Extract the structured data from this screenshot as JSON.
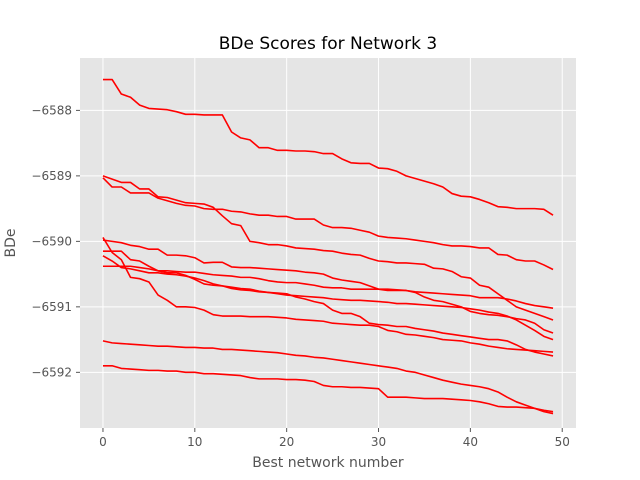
{
  "chart_data": {
    "type": "line",
    "title": "BDe Scores for Network 3",
    "xlabel": "Best network number",
    "ylabel": "BDe",
    "xlim": [
      -2.5,
      51.5
    ],
    "ylim": [
      -6592.85,
      -6587.2
    ],
    "xticks": [
      0,
      10,
      20,
      30,
      40,
      50
    ],
    "yticks": [
      -6592,
      -6591,
      -6590,
      -6589,
      -6588
    ],
    "ytick_labels": [
      "−6592",
      "−6591",
      "−6590",
      "−6589",
      "−6588"
    ],
    "grid": true,
    "color": "#ff0000",
    "series": [
      {
        "x": [
          0,
          1,
          2,
          3,
          4,
          5,
          6,
          7,
          8,
          9,
          10,
          11,
          12,
          13,
          14,
          15,
          16,
          17,
          18,
          19,
          20,
          21,
          22,
          23,
          24,
          25,
          26,
          27,
          28,
          29,
          30,
          31,
          32,
          33,
          34,
          35,
          36,
          37,
          38,
          39,
          40,
          41,
          42,
          43,
          44,
          45,
          46,
          47,
          48,
          49
        ],
        "y": [
          -6587.53,
          -6587.53,
          -6587.75,
          -6587.8,
          -6587.92,
          -6587.97,
          -6587.98,
          -6587.99,
          -6588.02,
          -6588.06,
          -6588.06,
          -6588.07,
          -6588.07,
          -6588.07,
          -6588.33,
          -6588.42,
          -6588.45,
          -6588.57,
          -6588.57,
          -6588.61,
          -6588.61,
          -6588.62,
          -6588.62,
          -6588.63,
          -6588.66,
          -6588.66,
          -6588.74,
          -6588.8,
          -6588.81,
          -6588.81,
          -6588.88,
          -6588.89,
          -6588.93,
          -6589.0,
          -6589.04,
          -6589.08,
          -6589.12,
          -6589.17,
          -6589.27,
          -6589.31,
          -6589.32,
          -6589.36,
          -6589.41,
          -6589.47,
          -6589.48,
          -6589.5,
          -6589.5,
          -6589.5,
          -6589.51,
          -6589.6
        ]
      },
      {
        "x": [
          0,
          1,
          2,
          3,
          4,
          5,
          6,
          7,
          8,
          9,
          10,
          11,
          12,
          13,
          14,
          15,
          16,
          17,
          18,
          19,
          20,
          21,
          22,
          23,
          24,
          25,
          26,
          27,
          28,
          29,
          30,
          31,
          32,
          33,
          34,
          35,
          36,
          37,
          38,
          39,
          40,
          41,
          42,
          43,
          44,
          45,
          46,
          47,
          48,
          49
        ],
        "y": [
          -6589.03,
          -6589.17,
          -6589.17,
          -6589.26,
          -6589.26,
          -6589.26,
          -6589.34,
          -6589.38,
          -6589.42,
          -6589.45,
          -6589.46,
          -6589.5,
          -6589.51,
          -6589.51,
          -6589.54,
          -6589.55,
          -6589.58,
          -6589.6,
          -6589.6,
          -6589.62,
          -6589.62,
          -6589.66,
          -6589.66,
          -6589.66,
          -6589.75,
          -6589.79,
          -6589.79,
          -6589.8,
          -6589.83,
          -6589.86,
          -6589.92,
          -6589.94,
          -6589.95,
          -6589.96,
          -6589.98,
          -6590.0,
          -6590.02,
          -6590.05,
          -6590.07,
          -6590.07,
          -6590.08,
          -6590.1,
          -6590.1,
          -6590.2,
          -6590.21,
          -6590.28,
          -6590.3,
          -6590.3,
          -6590.36,
          -6590.43
        ]
      },
      {
        "x": [
          0,
          1,
          2,
          3,
          4,
          5,
          6,
          7,
          8,
          9,
          10,
          11,
          12,
          13,
          14,
          15,
          16,
          17,
          18,
          19,
          20,
          21,
          22,
          23,
          24,
          25,
          26,
          27,
          28,
          29,
          30,
          31,
          32,
          33,
          34,
          35,
          36,
          37,
          38,
          39,
          40,
          41,
          42,
          43,
          44,
          45,
          46,
          47,
          48,
          49
        ],
        "y": [
          -6589.0,
          -6589.05,
          -6589.1,
          -6589.1,
          -6589.2,
          -6589.2,
          -6589.32,
          -6589.33,
          -6589.37,
          -6589.41,
          -6589.42,
          -6589.43,
          -6589.48,
          -6589.61,
          -6589.73,
          -6589.76,
          -6590.0,
          -6590.02,
          -6590.05,
          -6590.05,
          -6590.07,
          -6590.1,
          -6590.11,
          -6590.12,
          -6590.14,
          -6590.15,
          -6590.18,
          -6590.2,
          -6590.21,
          -6590.26,
          -6590.3,
          -6590.31,
          -6590.33,
          -6590.33,
          -6590.34,
          -6590.35,
          -6590.41,
          -6590.42,
          -6590.46,
          -6590.54,
          -6590.56,
          -6590.67,
          -6590.7,
          -6590.8,
          -6590.9,
          -6591.0,
          -6591.05,
          -6591.1,
          -6591.15,
          -6591.2
        ]
      },
      {
        "x": [
          0,
          1,
          2,
          3,
          4,
          5,
          6,
          7,
          8,
          9,
          10,
          11,
          12,
          13,
          14,
          15,
          16,
          17,
          18,
          19,
          20,
          21,
          22,
          23,
          24,
          25,
          26,
          27,
          28,
          29,
          30,
          31,
          32,
          33,
          34,
          35,
          36,
          37,
          38,
          39,
          40,
          41,
          42,
          43,
          44,
          45,
          46,
          47,
          48,
          49
        ],
        "y": [
          -6589.98,
          -6590.0,
          -6590.02,
          -6590.06,
          -6590.08,
          -6590.12,
          -6590.12,
          -6590.21,
          -6590.21,
          -6590.22,
          -6590.25,
          -6590.33,
          -6590.32,
          -6590.32,
          -6590.39,
          -6590.4,
          -6590.4,
          -6590.41,
          -6590.42,
          -6590.43,
          -6590.44,
          -6590.45,
          -6590.47,
          -6590.48,
          -6590.5,
          -6590.56,
          -6590.59,
          -6590.61,
          -6590.63,
          -6590.68,
          -6590.73,
          -6590.75,
          -6590.75,
          -6590.75,
          -6590.78,
          -6590.85,
          -6590.9,
          -6590.92,
          -6590.96,
          -6591.0,
          -6591.07,
          -6591.1,
          -6591.12,
          -6591.13,
          -6591.15,
          -6591.18,
          -6591.2,
          -6591.25,
          -6591.35,
          -6591.4
        ]
      },
      {
        "x": [
          0,
          1,
          2,
          3,
          4,
          5,
          6,
          7,
          8,
          9,
          10,
          11,
          12,
          13,
          14,
          15,
          16,
          17,
          18,
          19,
          20,
          21,
          22,
          23,
          24,
          25,
          26,
          27,
          28,
          29,
          30,
          31,
          32,
          33,
          34,
          35,
          36,
          37,
          38,
          39,
          40,
          41,
          42,
          43,
          44,
          45,
          46,
          47,
          48,
          49
        ],
        "y": [
          -6589.94,
          -6590.17,
          -6590.28,
          -6590.55,
          -6590.57,
          -6590.62,
          -6590.82,
          -6590.9,
          -6591.0,
          -6591.0,
          -6591.01,
          -6591.05,
          -6591.12,
          -6591.14,
          -6591.14,
          -6591.14,
          -6591.15,
          -6591.15,
          -6591.15,
          -6591.16,
          -6591.17,
          -6591.19,
          -6591.2,
          -6591.21,
          -6591.22,
          -6591.25,
          -6591.26,
          -6591.27,
          -6591.28,
          -6591.28,
          -6591.3,
          -6591.36,
          -6591.38,
          -6591.42,
          -6591.43,
          -6591.45,
          -6591.47,
          -6591.5,
          -6591.51,
          -6591.52,
          -6591.55,
          -6591.57,
          -6591.6,
          -6591.62,
          -6591.64,
          -6591.65,
          -6591.66,
          -6591.67,
          -6591.68,
          -6591.69
        ]
      },
      {
        "x": [
          0,
          1,
          2,
          3,
          4,
          5,
          6,
          7,
          8,
          9,
          10,
          11,
          12,
          13,
          14,
          15,
          16,
          17,
          18,
          19,
          20,
          21,
          22,
          23,
          24,
          25,
          26,
          27,
          28,
          29,
          30,
          31,
          32,
          33,
          34,
          35,
          36,
          37,
          38,
          39,
          40,
          41,
          42,
          43,
          44,
          45,
          46,
          47,
          48,
          49
        ],
        "y": [
          -6590.15,
          -6590.15,
          -6590.15,
          -6590.28,
          -6590.3,
          -6590.38,
          -6590.45,
          -6590.48,
          -6590.48,
          -6590.52,
          -6590.58,
          -6590.65,
          -6590.67,
          -6590.68,
          -6590.72,
          -6590.74,
          -6590.75,
          -6590.77,
          -6590.78,
          -6590.79,
          -6590.8,
          -6590.85,
          -6590.88,
          -6590.92,
          -6590.95,
          -6591.05,
          -6591.1,
          -6591.1,
          -6591.15,
          -6591.25,
          -6591.27,
          -6591.28,
          -6591.3,
          -6591.3,
          -6591.33,
          -6591.35,
          -6591.37,
          -6591.4,
          -6591.42,
          -6591.44,
          -6591.46,
          -6591.48,
          -6591.5,
          -6591.5,
          -6591.52,
          -6591.58,
          -6591.65,
          -6591.69,
          -6591.72,
          -6591.75
        ]
      },
      {
        "x": [
          0,
          1,
          2,
          3,
          4,
          5,
          6,
          7,
          8,
          9,
          10,
          11,
          12,
          13,
          14,
          15,
          16,
          17,
          18,
          19,
          20,
          21,
          22,
          23,
          24,
          25,
          26,
          27,
          28,
          29,
          30,
          31,
          32,
          33,
          34,
          35,
          36,
          37,
          38,
          39,
          40,
          41,
          42,
          43,
          44,
          45,
          46,
          47,
          48,
          49
        ],
        "y": [
          -6590.38,
          -6590.38,
          -6590.38,
          -6590.38,
          -6590.4,
          -6590.42,
          -6590.45,
          -6590.45,
          -6590.46,
          -6590.47,
          -6590.47,
          -6590.49,
          -6590.51,
          -6590.52,
          -6590.53,
          -6590.55,
          -6590.55,
          -6590.57,
          -6590.6,
          -6590.62,
          -6590.63,
          -6590.63,
          -6590.65,
          -6590.67,
          -6590.7,
          -6590.71,
          -6590.71,
          -6590.73,
          -6590.73,
          -6590.73,
          -6590.73,
          -6590.73,
          -6590.74,
          -6590.75,
          -6590.77,
          -6590.78,
          -6590.79,
          -6590.8,
          -6590.81,
          -6590.82,
          -6590.83,
          -6590.86,
          -6590.86,
          -6590.86,
          -6590.88,
          -6590.91,
          -6590.95,
          -6590.98,
          -6591.0,
          -6591.02
        ]
      },
      {
        "x": [
          0,
          1,
          2,
          3,
          4,
          5,
          6,
          7,
          8,
          9,
          10,
          11,
          12,
          13,
          14,
          15,
          16,
          17,
          18,
          19,
          20,
          21,
          22,
          23,
          24,
          25,
          26,
          27,
          28,
          29,
          30,
          31,
          32,
          33,
          34,
          35,
          36,
          37,
          38,
          39,
          40,
          41,
          42,
          43,
          44,
          45,
          46,
          47,
          48,
          49
        ],
        "y": [
          -6590.22,
          -6590.3,
          -6590.4,
          -6590.42,
          -6590.45,
          -6590.48,
          -6590.48,
          -6590.5,
          -6590.51,
          -6590.53,
          -6590.56,
          -6590.6,
          -6590.65,
          -6590.68,
          -6590.7,
          -6590.72,
          -6590.73,
          -6590.76,
          -6590.78,
          -6590.8,
          -6590.82,
          -6590.83,
          -6590.84,
          -6590.85,
          -6590.86,
          -6590.88,
          -6590.89,
          -6590.9,
          -6590.9,
          -6590.91,
          -6590.92,
          -6590.93,
          -6590.95,
          -6590.95,
          -6590.96,
          -6590.97,
          -6590.98,
          -6590.99,
          -6591.0,
          -6591.01,
          -6591.03,
          -6591.05,
          -6591.08,
          -6591.1,
          -6591.14,
          -6591.2,
          -6591.28,
          -6591.36,
          -6591.45,
          -6591.5
        ]
      },
      {
        "x": [
          0,
          1,
          2,
          3,
          4,
          5,
          6,
          7,
          8,
          9,
          10,
          11,
          12,
          13,
          14,
          15,
          16,
          17,
          18,
          19,
          20,
          21,
          22,
          23,
          24,
          25,
          26,
          27,
          28,
          29,
          30,
          31,
          32,
          33,
          34,
          35,
          36,
          37,
          38,
          39,
          40,
          41,
          42,
          43,
          44,
          45,
          46,
          47,
          48,
          49
        ],
        "y": [
          -6591.52,
          -6591.55,
          -6591.56,
          -6591.57,
          -6591.58,
          -6591.59,
          -6591.6,
          -6591.6,
          -6591.61,
          -6591.62,
          -6591.62,
          -6591.63,
          -6591.63,
          -6591.65,
          -6591.65,
          -6591.66,
          -6591.67,
          -6591.68,
          -6591.69,
          -6591.7,
          -6591.72,
          -6591.74,
          -6591.75,
          -6591.77,
          -6591.78,
          -6591.8,
          -6591.82,
          -6591.84,
          -6591.86,
          -6591.88,
          -6591.9,
          -6591.92,
          -6591.94,
          -6591.98,
          -6592.0,
          -6592.04,
          -6592.08,
          -6592.12,
          -6592.15,
          -6592.18,
          -6592.2,
          -6592.22,
          -6592.25,
          -6592.3,
          -6592.38,
          -6592.45,
          -6592.5,
          -6592.55,
          -6592.6,
          -6592.63
        ]
      },
      {
        "x": [
          0,
          1,
          2,
          3,
          4,
          5,
          6,
          7,
          8,
          9,
          10,
          11,
          12,
          13,
          14,
          15,
          16,
          17,
          18,
          19,
          20,
          21,
          22,
          23,
          24,
          25,
          26,
          27,
          28,
          29,
          30,
          31,
          32,
          33,
          34,
          35,
          36,
          37,
          38,
          39,
          40,
          41,
          42,
          43,
          44,
          45,
          46,
          47,
          48,
          49
        ],
        "y": [
          -6591.9,
          -6591.9,
          -6591.94,
          -6591.95,
          -6591.96,
          -6591.97,
          -6591.97,
          -6591.98,
          -6591.98,
          -6592.0,
          -6592.0,
          -6592.02,
          -6592.02,
          -6592.03,
          -6592.04,
          -6592.05,
          -6592.08,
          -6592.1,
          -6592.1,
          -6592.1,
          -6592.11,
          -6592.11,
          -6592.12,
          -6592.14,
          -6592.2,
          -6592.22,
          -6592.22,
          -6592.23,
          -6592.23,
          -6592.24,
          -6592.25,
          -6592.38,
          -6592.38,
          -6592.38,
          -6592.39,
          -6592.4,
          -6592.4,
          -6592.4,
          -6592.41,
          -6592.42,
          -6592.43,
          -6592.45,
          -6592.48,
          -6592.52,
          -6592.53,
          -6592.53,
          -6592.54,
          -6592.55,
          -6592.58,
          -6592.6
        ]
      }
    ]
  }
}
